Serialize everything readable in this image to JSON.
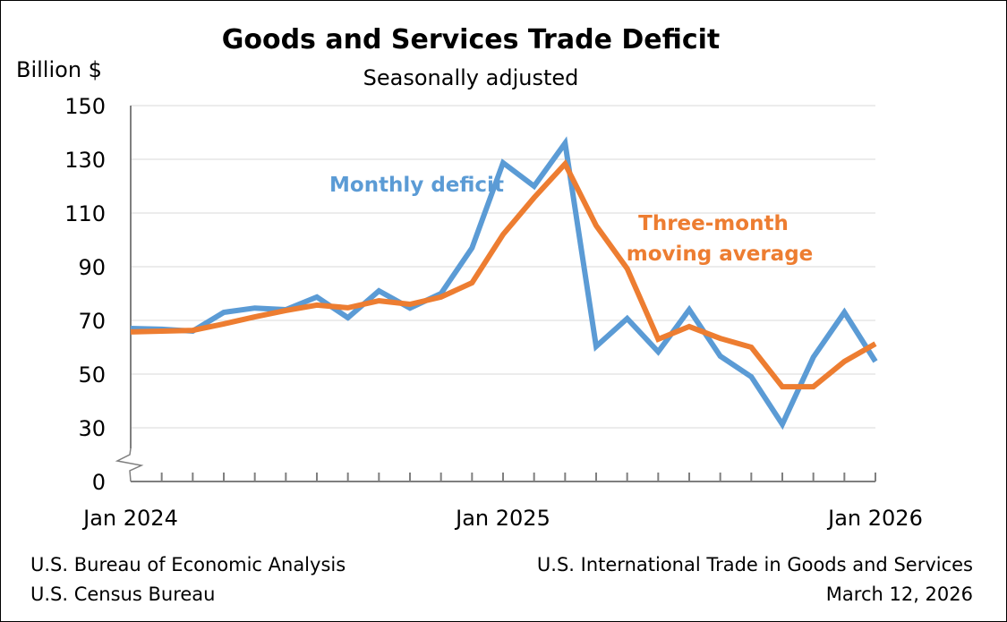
{
  "chart_data": {
    "type": "line",
    "title": "Goods and Services Trade Deficit",
    "subtitle": "Seasonally adjusted",
    "ylabel": "Billion $",
    "xlabel": "",
    "ylim": [
      30,
      150
    ],
    "y_axis_break": true,
    "yticks": [
      "150",
      "130",
      "110",
      "90",
      "70",
      "50",
      "30",
      "0"
    ],
    "ytick_values": [
      150,
      130,
      110,
      90,
      70,
      50,
      30
    ],
    "xtick_labels": [
      "Jan 2024",
      "Jan 2025",
      "Jan 2026"
    ],
    "x": [
      "2024-01",
      "2024-02",
      "2024-03",
      "2024-04",
      "2024-05",
      "2024-06",
      "2024-07",
      "2024-08",
      "2024-09",
      "2024-10",
      "2024-11",
      "2024-12",
      "2025-01",
      "2025-02",
      "2025-03",
      "2025-04",
      "2025-05",
      "2025-06",
      "2025-07",
      "2025-08",
      "2025-09",
      "2025-10",
      "2025-11",
      "2025-12",
      "2026-01"
    ],
    "grid": true,
    "series": [
      {
        "name": "Monthly deficit",
        "color": "#5b9bd5",
        "values": [
          67.0,
          66.7,
          66.0,
          73.0,
          74.6,
          74.0,
          78.7,
          71.0,
          81.0,
          74.6,
          80.0,
          97.0,
          128.7,
          120.0,
          136.0,
          60.3,
          70.7,
          58.3,
          74.0,
          56.7,
          49.0,
          31.3,
          56.3,
          73.0,
          54.7
        ]
      },
      {
        "name": "Three-month moving average",
        "label_lines": [
          "Three-month",
          "moving average"
        ],
        "color": "#ed7d31",
        "values": [
          65.7,
          66.0,
          66.3,
          68.7,
          71.3,
          73.7,
          75.7,
          74.7,
          77.3,
          76.0,
          78.7,
          84.0,
          102.0,
          115.7,
          128.3,
          105.3,
          89.3,
          63.0,
          67.7,
          63.3,
          60.0,
          45.3,
          45.3,
          54.7,
          61.3
        ]
      }
    ]
  },
  "footer": {
    "left_1": "U.S. Bureau of Economic Analysis",
    "left_2": "U.S. Census Bureau",
    "right_1": "U.S. International Trade in Goods and Services",
    "right_2": "March 12, 2026"
  }
}
